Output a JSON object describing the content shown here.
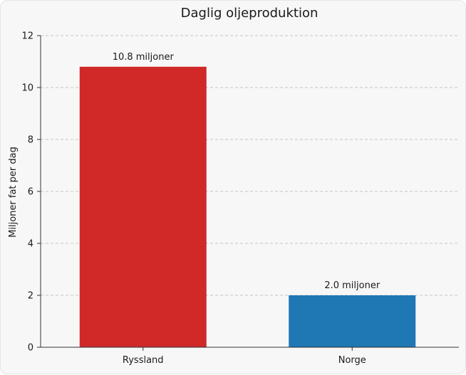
{
  "chart_data": {
    "type": "bar",
    "title": "Daglig oljeproduktion",
    "xlabel": "",
    "ylabel": "Miljoner fat per dag",
    "categories": [
      "Ryssland",
      "Norge"
    ],
    "values": [
      10.8,
      2.0
    ],
    "data_labels": [
      "10.8 miljoner",
      "2.0 miljoner"
    ],
    "colors": [
      "#d12828",
      "#1f77b4"
    ],
    "ylim": [
      0,
      12
    ],
    "yticks": [
      0,
      2,
      4,
      6,
      8,
      10,
      12
    ],
    "grid": "horizontal-dashed",
    "legend": "none"
  }
}
